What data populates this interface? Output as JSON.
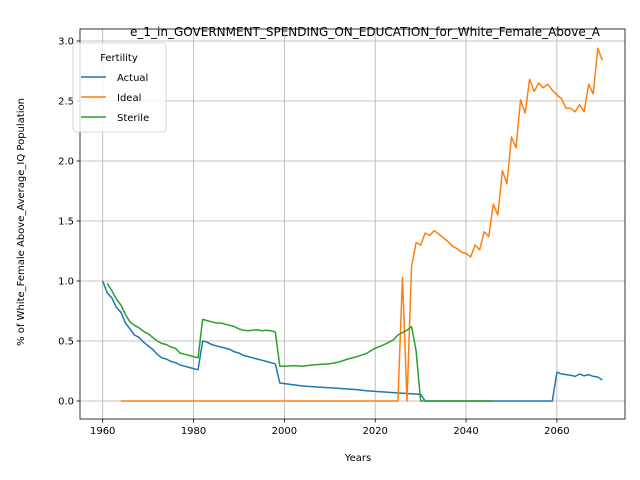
{
  "chart_data": {
    "type": "line",
    "title": "e_1_in_GOVERNMENT_SPENDING_ON_EDUCATION_for_White_Female_Above_A",
    "xlabel": "Years",
    "ylabel": "% of White_Female Above_Average_IQ Population",
    "xlim": [
      1955,
      2075
    ],
    "ylim": [
      -0.15,
      3.1
    ],
    "xticks": [
      1960,
      1980,
      2000,
      2020,
      2040,
      2060
    ],
    "yticks": [
      0.0,
      0.5,
      1.0,
      1.5,
      2.0,
      2.5,
      3.0
    ],
    "xtick_labels": [
      "1960",
      "1980",
      "2000",
      "2020",
      "2040",
      "2060"
    ],
    "ytick_labels": [
      "0.0",
      "0.5",
      "1.0",
      "1.5",
      "2.0",
      "2.5",
      "3.0"
    ],
    "grid": true,
    "legend": {
      "title": "Fertility",
      "placement": "upper-left"
    },
    "series": [
      {
        "name": "Actual",
        "color": "#1f77b4",
        "x": [
          1960,
          1961,
          1962,
          1963,
          1964,
          1965,
          1966,
          1967,
          1968,
          1969,
          1970,
          1971,
          1972,
          1973,
          1974,
          1975,
          1976,
          1977,
          1978,
          1979,
          1980,
          1981,
          1982,
          1983,
          1984,
          1985,
          1986,
          1987,
          1988,
          1989,
          1990,
          1991,
          1992,
          1993,
          1994,
          1995,
          1996,
          1997,
          1998,
          1999,
          2000,
          2002,
          2004,
          2006,
          2008,
          2010,
          2012,
          2014,
          2016,
          2018,
          2020,
          2022,
          2024,
          2026,
          2028,
          2030,
          2031,
          2040,
          2050,
          2059,
          2060,
          2061,
          2062,
          2063,
          2064,
          2065,
          2066,
          2067,
          2068,
          2069,
          2070
        ],
        "y": [
          1.0,
          0.9,
          0.86,
          0.78,
          0.74,
          0.65,
          0.6,
          0.55,
          0.53,
          0.49,
          0.46,
          0.43,
          0.39,
          0.36,
          0.35,
          0.33,
          0.32,
          0.3,
          0.29,
          0.28,
          0.27,
          0.26,
          0.5,
          0.49,
          0.47,
          0.46,
          0.45,
          0.44,
          0.43,
          0.41,
          0.4,
          0.38,
          0.37,
          0.36,
          0.35,
          0.34,
          0.33,
          0.32,
          0.31,
          0.15,
          0.145,
          0.135,
          0.125,
          0.12,
          0.115,
          0.11,
          0.105,
          0.1,
          0.095,
          0.085,
          0.08,
          0.075,
          0.07,
          0.065,
          0.06,
          0.055,
          0.0,
          0.0,
          0.0,
          0.0,
          0.24,
          0.225,
          0.22,
          0.215,
          0.205,
          0.225,
          0.21,
          0.22,
          0.205,
          0.2,
          0.175
        ]
      },
      {
        "name": "Ideal",
        "color": "#ff7f0e",
        "x": [
          1964,
          1970,
          1980,
          1990,
          2000,
          2010,
          2020,
          2025,
          2026,
          2027,
          2028,
          2029,
          2030,
          2031,
          2032,
          2033,
          2034,
          2035,
          2036,
          2037,
          2038,
          2039,
          2040,
          2041,
          2042,
          2043,
          2044,
          2045,
          2046,
          2047,
          2048,
          2049,
          2050,
          2051,
          2052,
          2053,
          2054,
          2055,
          2056,
          2057,
          2058,
          2059,
          2060,
          2061,
          2062,
          2063,
          2064,
          2065,
          2066,
          2067,
          2068,
          2069,
          2070
        ],
        "y": [
          0.0,
          0.0,
          0.0,
          0.0,
          0.0,
          0.0,
          0.0,
          0.0,
          1.03,
          0.0,
          1.12,
          1.32,
          1.3,
          1.4,
          1.38,
          1.42,
          1.39,
          1.36,
          1.33,
          1.29,
          1.27,
          1.24,
          1.23,
          1.2,
          1.3,
          1.26,
          1.41,
          1.37,
          1.64,
          1.55,
          1.92,
          1.81,
          2.2,
          2.11,
          2.51,
          2.4,
          2.68,
          2.58,
          2.65,
          2.61,
          2.64,
          2.59,
          2.55,
          2.52,
          2.44,
          2.44,
          2.41,
          2.47,
          2.41,
          2.64,
          2.56,
          2.94,
          2.84
        ]
      },
      {
        "name": "Sterile",
        "color": "#2ca02c",
        "x": [
          1961,
          1962,
          1963,
          1964,
          1965,
          1966,
          1967,
          1968,
          1969,
          1970,
          1971,
          1972,
          1973,
          1974,
          1975,
          1976,
          1977,
          1978,
          1979,
          1980,
          1981,
          1982,
          1983,
          1984,
          1985,
          1986,
          1987,
          1988,
          1989,
          1990,
          1991,
          1992,
          1993,
          1994,
          1995,
          1996,
          1997,
          1998,
          1999,
          2000,
          2002,
          2004,
          2006,
          2008,
          2010,
          2012,
          2014,
          2016,
          2018,
          2020,
          2022,
          2024,
          2025,
          2026,
          2027,
          2028,
          2029,
          2030,
          2031,
          2040,
          2046
        ],
        "y": [
          0.98,
          0.92,
          0.85,
          0.8,
          0.72,
          0.66,
          0.63,
          0.61,
          0.58,
          0.56,
          0.53,
          0.5,
          0.48,
          0.47,
          0.45,
          0.44,
          0.4,
          0.39,
          0.38,
          0.37,
          0.36,
          0.68,
          0.67,
          0.66,
          0.65,
          0.65,
          0.64,
          0.63,
          0.62,
          0.6,
          0.59,
          0.585,
          0.59,
          0.595,
          0.585,
          0.59,
          0.585,
          0.575,
          0.29,
          0.29,
          0.295,
          0.29,
          0.3,
          0.305,
          0.31,
          0.325,
          0.35,
          0.37,
          0.395,
          0.44,
          0.47,
          0.51,
          0.55,
          0.57,
          0.59,
          0.62,
          0.42,
          0.0,
          0.0,
          0.0,
          0.0
        ]
      }
    ]
  }
}
